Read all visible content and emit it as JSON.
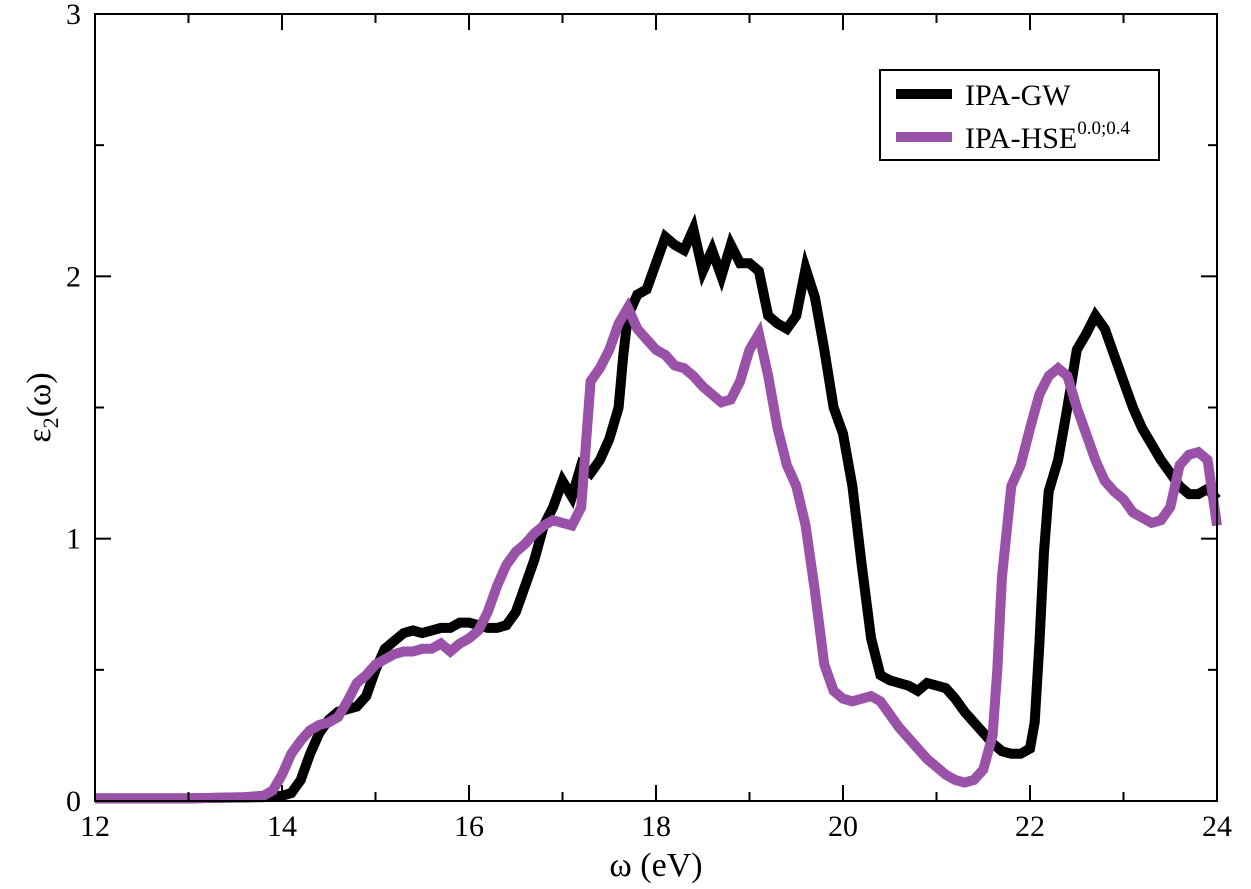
{
  "chart_data": {
    "type": "line",
    "title": "",
    "xlabel": "ω (eV)",
    "ylabel": {
      "base": "ε",
      "subscript": "2",
      "suffix": "(ω)"
    },
    "xlim": [
      12,
      24
    ],
    "ylim": [
      0,
      3
    ],
    "xticks": [
      12,
      14,
      16,
      18,
      20,
      22,
      24
    ],
    "yticks": [
      0,
      1,
      2,
      3
    ],
    "xtick_labels": [
      "12",
      "14",
      "16",
      "18",
      "20",
      "22",
      "24"
    ],
    "ytick_labels": [
      "0",
      "1",
      "2",
      "3"
    ],
    "grid": false,
    "legend_position": "top-right",
    "series": [
      {
        "name": "IPA-GW",
        "legend": {
          "base": "IPA-GW",
          "sup": ""
        },
        "color": "#000000",
        "points": [
          [
            12.0,
            0.01
          ],
          [
            13.0,
            0.01
          ],
          [
            13.8,
            0.015
          ],
          [
            14.0,
            0.02
          ],
          [
            14.1,
            0.03
          ],
          [
            14.2,
            0.08
          ],
          [
            14.3,
            0.18
          ],
          [
            14.4,
            0.26
          ],
          [
            14.5,
            0.31
          ],
          [
            14.6,
            0.34
          ],
          [
            14.7,
            0.35
          ],
          [
            14.8,
            0.36
          ],
          [
            14.9,
            0.4
          ],
          [
            15.0,
            0.5
          ],
          [
            15.1,
            0.58
          ],
          [
            15.2,
            0.61
          ],
          [
            15.3,
            0.64
          ],
          [
            15.4,
            0.65
          ],
          [
            15.5,
            0.64
          ],
          [
            15.6,
            0.65
          ],
          [
            15.7,
            0.66
          ],
          [
            15.8,
            0.66
          ],
          [
            15.9,
            0.68
          ],
          [
            16.0,
            0.68
          ],
          [
            16.1,
            0.67
          ],
          [
            16.2,
            0.66
          ],
          [
            16.3,
            0.66
          ],
          [
            16.4,
            0.67
          ],
          [
            16.5,
            0.72
          ],
          [
            16.6,
            0.82
          ],
          [
            16.7,
            0.92
          ],
          [
            16.8,
            1.05
          ],
          [
            16.9,
            1.12
          ],
          [
            17.0,
            1.22
          ],
          [
            17.1,
            1.16
          ],
          [
            17.2,
            1.28
          ],
          [
            17.3,
            1.25
          ],
          [
            17.4,
            1.3
          ],
          [
            17.5,
            1.38
          ],
          [
            17.6,
            1.5
          ],
          [
            17.65,
            1.7
          ],
          [
            17.7,
            1.85
          ],
          [
            17.8,
            1.93
          ],
          [
            17.9,
            1.95
          ],
          [
            18.0,
            2.05
          ],
          [
            18.1,
            2.15
          ],
          [
            18.2,
            2.12
          ],
          [
            18.3,
            2.1
          ],
          [
            18.4,
            2.18
          ],
          [
            18.5,
            2.02
          ],
          [
            18.6,
            2.1
          ],
          [
            18.7,
            2.0
          ],
          [
            18.8,
            2.12
          ],
          [
            18.9,
            2.05
          ],
          [
            19.0,
            2.05
          ],
          [
            19.1,
            2.02
          ],
          [
            19.2,
            1.85
          ],
          [
            19.3,
            1.82
          ],
          [
            19.4,
            1.8
          ],
          [
            19.5,
            1.85
          ],
          [
            19.6,
            2.03
          ],
          [
            19.7,
            1.92
          ],
          [
            19.8,
            1.72
          ],
          [
            19.9,
            1.5
          ],
          [
            20.0,
            1.4
          ],
          [
            20.1,
            1.2
          ],
          [
            20.2,
            0.9
          ],
          [
            20.3,
            0.62
          ],
          [
            20.4,
            0.48
          ],
          [
            20.5,
            0.46
          ],
          [
            20.6,
            0.45
          ],
          [
            20.7,
            0.44
          ],
          [
            20.8,
            0.42
          ],
          [
            20.9,
            0.45
          ],
          [
            21.0,
            0.44
          ],
          [
            21.1,
            0.43
          ],
          [
            21.2,
            0.39
          ],
          [
            21.3,
            0.34
          ],
          [
            21.4,
            0.3
          ],
          [
            21.5,
            0.26
          ],
          [
            21.6,
            0.22
          ],
          [
            21.7,
            0.19
          ],
          [
            21.8,
            0.18
          ],
          [
            21.9,
            0.18
          ],
          [
            22.0,
            0.2
          ],
          [
            22.05,
            0.3
          ],
          [
            22.1,
            0.6
          ],
          [
            22.15,
            0.95
          ],
          [
            22.2,
            1.18
          ],
          [
            22.3,
            1.3
          ],
          [
            22.4,
            1.5
          ],
          [
            22.5,
            1.72
          ],
          [
            22.6,
            1.78
          ],
          [
            22.7,
            1.85
          ],
          [
            22.8,
            1.8
          ],
          [
            22.9,
            1.7
          ],
          [
            23.0,
            1.6
          ],
          [
            23.1,
            1.5
          ],
          [
            23.2,
            1.42
          ],
          [
            23.3,
            1.36
          ],
          [
            23.4,
            1.3
          ],
          [
            23.5,
            1.25
          ],
          [
            23.6,
            1.2
          ],
          [
            23.7,
            1.17
          ],
          [
            23.8,
            1.17
          ],
          [
            23.9,
            1.19
          ],
          [
            24.0,
            1.15
          ]
        ]
      },
      {
        "name": "IPA-HSE0.0;0.4",
        "legend": {
          "base": "IPA-HSE",
          "sup": "0.0;0.4"
        },
        "color": "#9a52a8",
        "points": [
          [
            12.0,
            0.01
          ],
          [
            13.0,
            0.01
          ],
          [
            13.6,
            0.015
          ],
          [
            13.8,
            0.02
          ],
          [
            13.9,
            0.04
          ],
          [
            14.0,
            0.1
          ],
          [
            14.1,
            0.18
          ],
          [
            14.2,
            0.23
          ],
          [
            14.3,
            0.27
          ],
          [
            14.4,
            0.29
          ],
          [
            14.5,
            0.3
          ],
          [
            14.6,
            0.32
          ],
          [
            14.7,
            0.38
          ],
          [
            14.8,
            0.45
          ],
          [
            14.9,
            0.48
          ],
          [
            15.0,
            0.52
          ],
          [
            15.1,
            0.54
          ],
          [
            15.2,
            0.56
          ],
          [
            15.3,
            0.57
          ],
          [
            15.4,
            0.57
          ],
          [
            15.5,
            0.58
          ],
          [
            15.6,
            0.58
          ],
          [
            15.7,
            0.6
          ],
          [
            15.8,
            0.57
          ],
          [
            15.9,
            0.6
          ],
          [
            16.0,
            0.62
          ],
          [
            16.1,
            0.65
          ],
          [
            16.2,
            0.72
          ],
          [
            16.3,
            0.82
          ],
          [
            16.4,
            0.9
          ],
          [
            16.5,
            0.95
          ],
          [
            16.6,
            0.98
          ],
          [
            16.7,
            1.02
          ],
          [
            16.8,
            1.05
          ],
          [
            16.9,
            1.07
          ],
          [
            17.0,
            1.06
          ],
          [
            17.1,
            1.05
          ],
          [
            17.2,
            1.12
          ],
          [
            17.3,
            1.6
          ],
          [
            17.4,
            1.65
          ],
          [
            17.5,
            1.72
          ],
          [
            17.6,
            1.82
          ],
          [
            17.7,
            1.88
          ],
          [
            17.8,
            1.8
          ],
          [
            17.9,
            1.76
          ],
          [
            18.0,
            1.72
          ],
          [
            18.1,
            1.7
          ],
          [
            18.2,
            1.66
          ],
          [
            18.3,
            1.65
          ],
          [
            18.4,
            1.62
          ],
          [
            18.5,
            1.58
          ],
          [
            18.6,
            1.55
          ],
          [
            18.7,
            1.52
          ],
          [
            18.8,
            1.53
          ],
          [
            18.9,
            1.6
          ],
          [
            19.0,
            1.72
          ],
          [
            19.1,
            1.78
          ],
          [
            19.2,
            1.62
          ],
          [
            19.3,
            1.42
          ],
          [
            19.4,
            1.28
          ],
          [
            19.5,
            1.2
          ],
          [
            19.6,
            1.05
          ],
          [
            19.7,
            0.8
          ],
          [
            19.8,
            0.52
          ],
          [
            19.9,
            0.42
          ],
          [
            20.0,
            0.39
          ],
          [
            20.1,
            0.38
          ],
          [
            20.2,
            0.39
          ],
          [
            20.3,
            0.4
          ],
          [
            20.4,
            0.38
          ],
          [
            20.5,
            0.33
          ],
          [
            20.6,
            0.28
          ],
          [
            20.7,
            0.24
          ],
          [
            20.8,
            0.2
          ],
          [
            20.9,
            0.16
          ],
          [
            21.0,
            0.13
          ],
          [
            21.1,
            0.1
          ],
          [
            21.2,
            0.08
          ],
          [
            21.3,
            0.07
          ],
          [
            21.4,
            0.08
          ],
          [
            21.5,
            0.12
          ],
          [
            21.6,
            0.25
          ],
          [
            21.65,
            0.5
          ],
          [
            21.7,
            0.85
          ],
          [
            21.8,
            1.2
          ],
          [
            21.9,
            1.28
          ],
          [
            22.0,
            1.42
          ],
          [
            22.1,
            1.55
          ],
          [
            22.2,
            1.62
          ],
          [
            22.3,
            1.65
          ],
          [
            22.4,
            1.62
          ],
          [
            22.5,
            1.5
          ],
          [
            22.6,
            1.4
          ],
          [
            22.7,
            1.3
          ],
          [
            22.8,
            1.22
          ],
          [
            22.9,
            1.18
          ],
          [
            23.0,
            1.15
          ],
          [
            23.1,
            1.1
          ],
          [
            23.2,
            1.08
          ],
          [
            23.3,
            1.06
          ],
          [
            23.4,
            1.07
          ],
          [
            23.5,
            1.12
          ],
          [
            23.6,
            1.28
          ],
          [
            23.7,
            1.32
          ],
          [
            23.8,
            1.33
          ],
          [
            23.9,
            1.3
          ],
          [
            24.0,
            1.05
          ]
        ]
      }
    ]
  }
}
